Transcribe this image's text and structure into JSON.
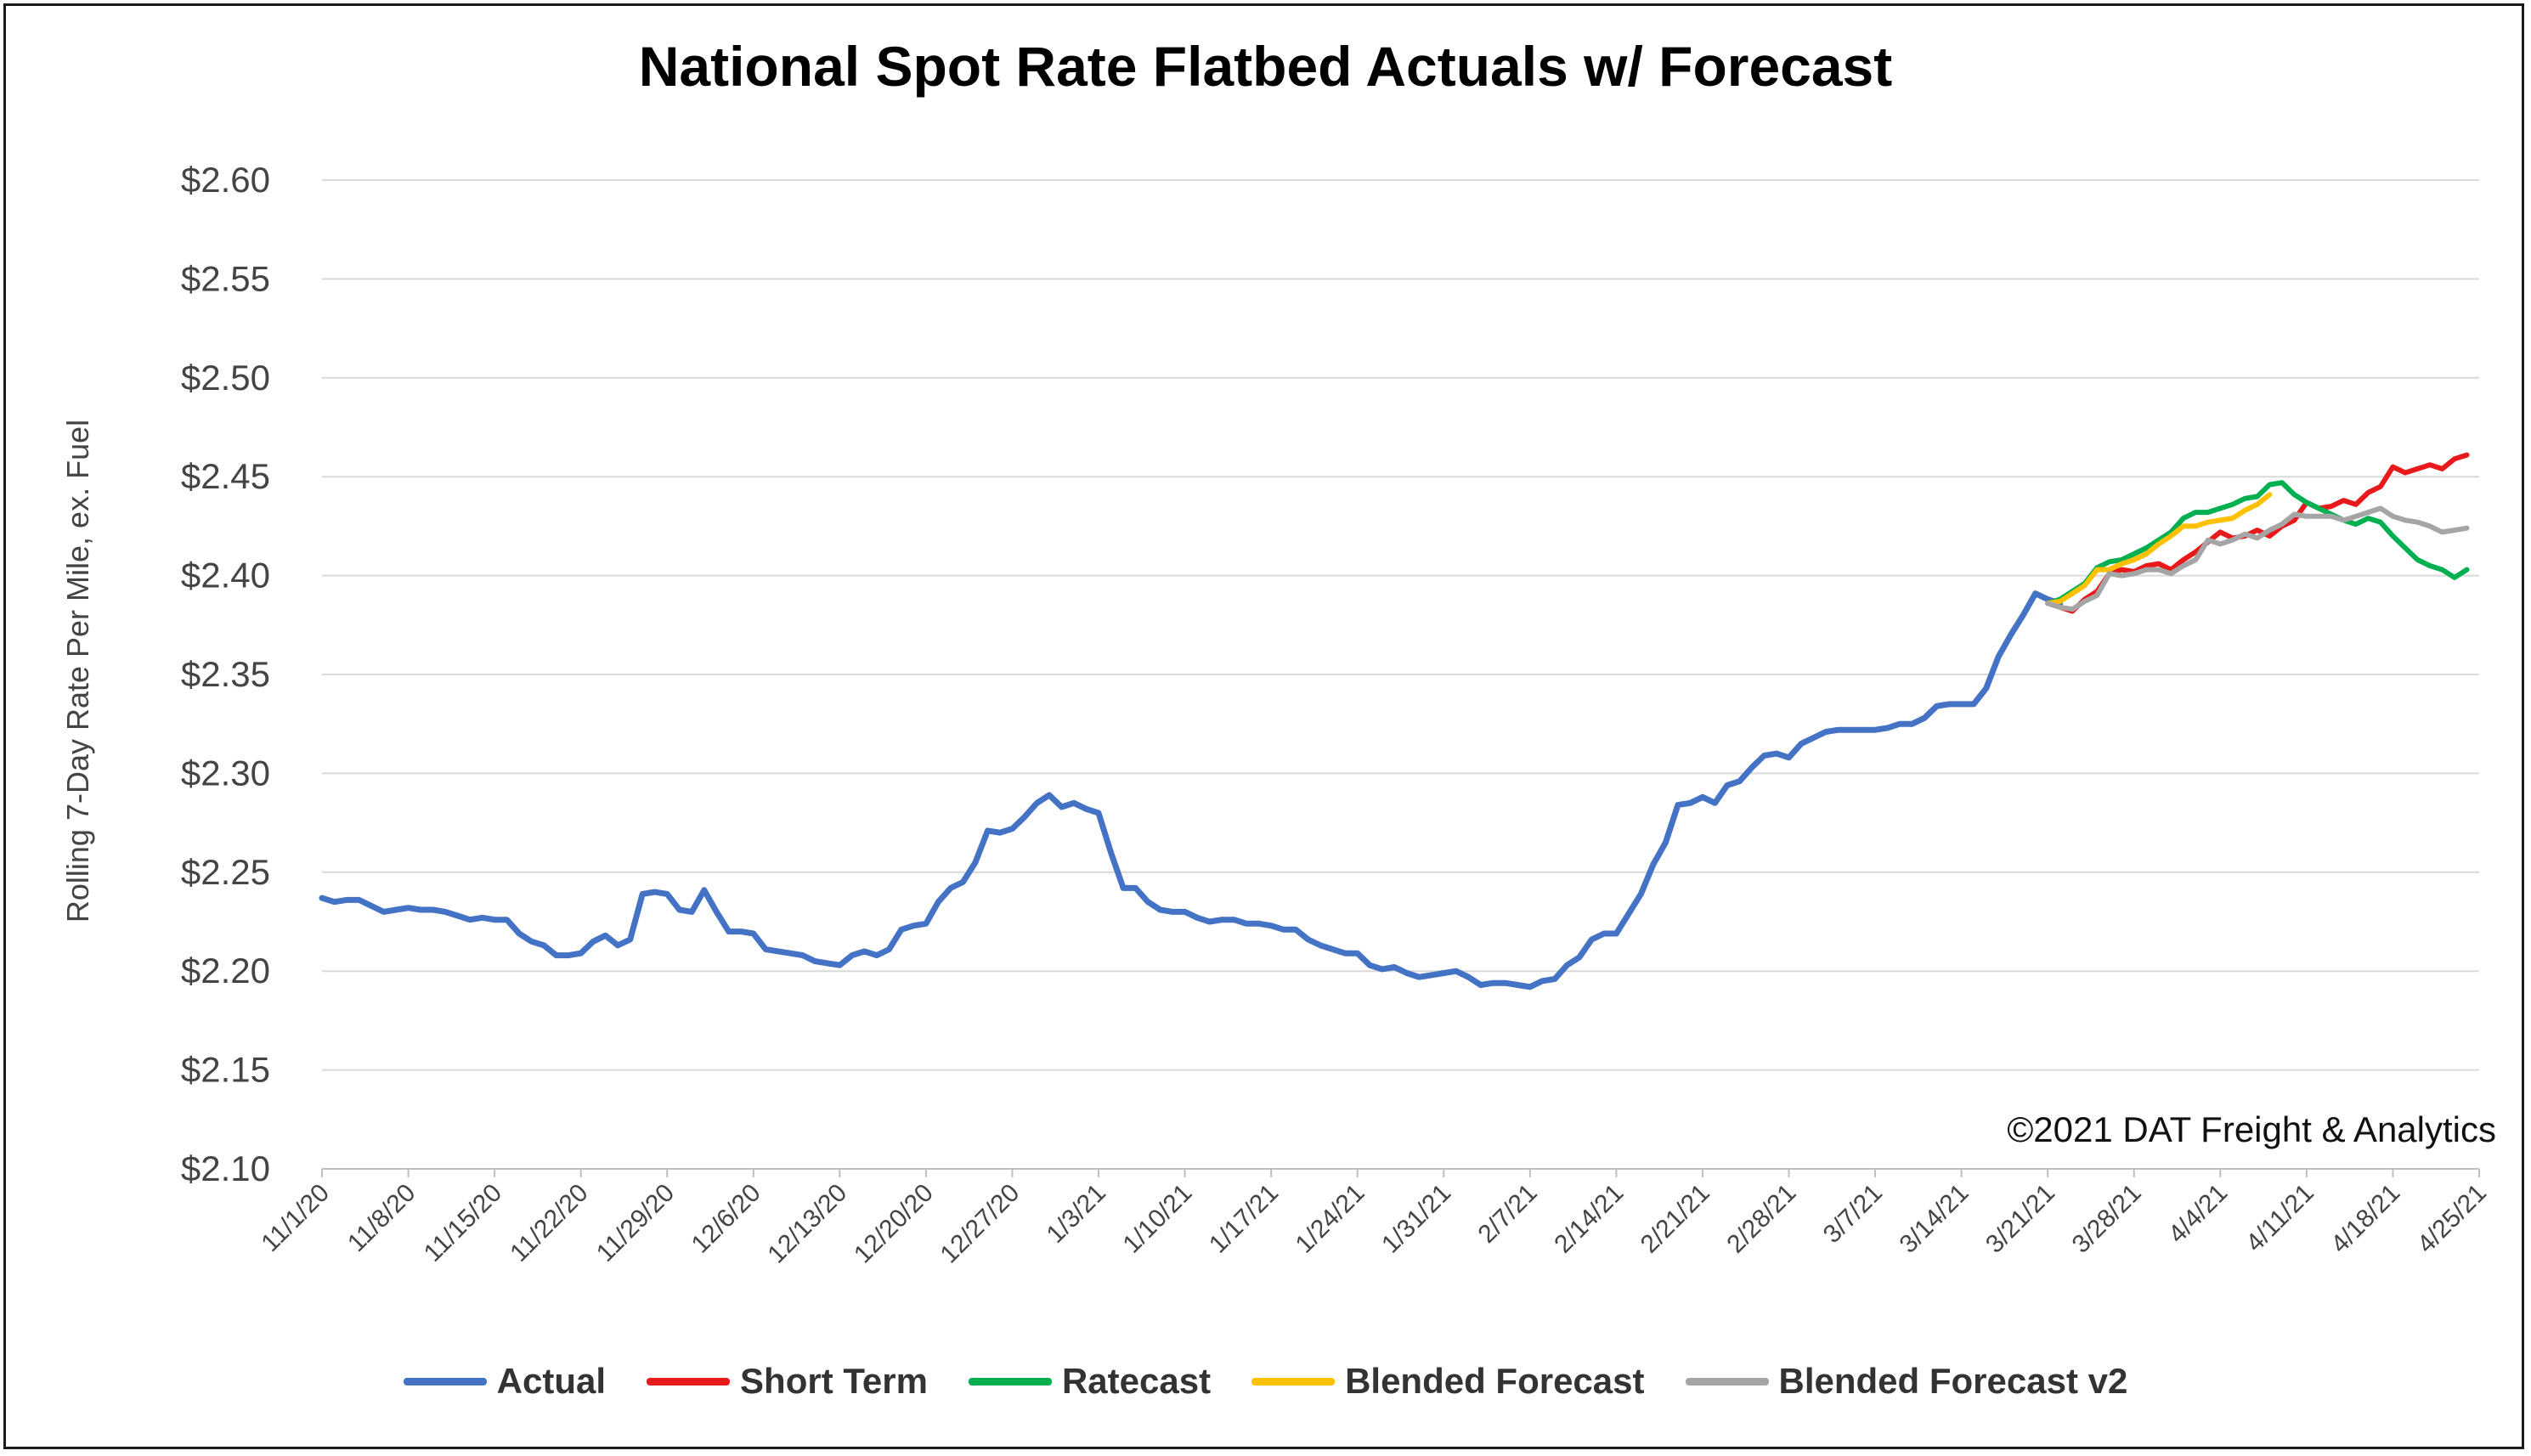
{
  "chart_data": {
    "type": "line",
    "title": "National Spot Rate Flatbed Actuals w/ Forecast",
    "ylabel": "Rolling 7-Day Rate Per Mile, ex. Fuel",
    "xlabel": "",
    "ylim": [
      2.1,
      2.6
    ],
    "yticks": [
      "$2.10",
      "$2.15",
      "$2.20",
      "$2.25",
      "$2.30",
      "$2.35",
      "$2.40",
      "$2.45",
      "$2.50",
      "$2.55",
      "$2.60"
    ],
    "xticks": [
      "11/1/20",
      "11/8/20",
      "11/15/20",
      "11/22/20",
      "11/29/20",
      "12/6/20",
      "12/13/20",
      "12/20/20",
      "12/27/20",
      "1/3/21",
      "1/10/21",
      "1/17/21",
      "1/24/21",
      "1/31/21",
      "2/7/21",
      "2/14/21",
      "2/21/21",
      "2/28/21",
      "3/7/21",
      "3/14/21",
      "3/21/21",
      "3/28/21",
      "4/4/21",
      "4/11/21",
      "4/18/21",
      "4/25/21"
    ],
    "x_start": "11/1/20",
    "grid": true,
    "legend_position": "bottom",
    "watermark": "©2021 DAT Freight & Analytics",
    "series": [
      {
        "name": "Actual",
        "color": "#4472C4",
        "start_day": 0,
        "values": [
          2.237,
          2.235,
          2.236,
          2.236,
          2.233,
          2.23,
          2.231,
          2.232,
          2.231,
          2.231,
          2.23,
          2.228,
          2.226,
          2.227,
          2.226,
          2.226,
          2.219,
          2.215,
          2.213,
          2.208,
          2.208,
          2.209,
          2.215,
          2.218,
          2.213,
          2.216,
          2.239,
          2.24,
          2.239,
          2.231,
          2.23,
          2.241,
          2.23,
          2.22,
          2.22,
          2.219,
          2.211,
          2.21,
          2.209,
          2.208,
          2.205,
          2.204,
          2.203,
          2.208,
          2.21,
          2.208,
          2.211,
          2.221,
          2.223,
          2.224,
          2.235,
          2.242,
          2.245,
          2.255,
          2.271,
          2.27,
          2.272,
          2.278,
          2.285,
          2.289,
          2.283,
          2.285,
          2.282,
          2.28,
          2.26,
          2.242,
          2.242,
          2.235,
          2.231,
          2.23,
          2.23,
          2.227,
          2.225,
          2.226,
          2.226,
          2.224,
          2.224,
          2.223,
          2.221,
          2.221,
          2.216,
          2.213,
          2.211,
          2.209,
          2.209,
          2.203,
          2.201,
          2.202,
          2.199,
          2.197,
          2.198,
          2.199,
          2.2,
          2.197,
          2.193,
          2.194,
          2.194,
          2.193,
          2.192,
          2.195,
          2.196,
          2.203,
          2.207,
          2.216,
          2.219,
          2.219,
          2.229,
          2.239,
          2.254,
          2.265,
          2.284,
          2.285,
          2.288,
          2.285,
          2.294,
          2.296,
          2.303,
          2.309,
          2.31,
          2.308,
          2.315,
          2.318,
          2.321,
          2.322,
          2.322,
          2.322,
          2.322,
          2.323,
          2.325,
          2.325,
          2.328,
          2.334,
          2.335,
          2.335,
          2.335,
          2.343,
          2.359,
          2.37,
          2.38,
          2.391,
          2.388,
          2.386
        ]
      },
      {
        "name": "Short Term",
        "color": "#E8191B",
        "start_day": 140,
        "values": [
          2.386,
          2.384,
          2.382,
          2.388,
          2.392,
          2.401,
          2.403,
          2.402,
          2.405,
          2.406,
          2.403,
          2.408,
          2.412,
          2.417,
          2.422,
          2.419,
          2.42,
          2.423,
          2.42,
          2.425,
          2.428,
          2.437,
          2.434,
          2.435,
          2.438,
          2.436,
          2.442,
          2.445,
          2.455,
          2.452,
          2.454,
          2.456,
          2.454,
          2.459,
          2.461
        ]
      },
      {
        "name": "Ratecast",
        "color": "#00B050",
        "start_day": 140,
        "values": [
          2.386,
          2.388,
          2.392,
          2.396,
          2.404,
          2.407,
          2.408,
          2.411,
          2.414,
          2.418,
          2.422,
          2.429,
          2.432,
          2.432,
          2.434,
          2.436,
          2.439,
          2.44,
          2.446,
          2.447,
          2.441,
          2.437,
          2.434,
          2.431,
          2.428,
          2.426,
          2.429,
          2.427,
          2.42,
          2.414,
          2.408,
          2.405,
          2.403,
          2.399,
          2.403
        ]
      },
      {
        "name": "Blended Forecast",
        "color": "#FFC000",
        "start_day": 140,
        "values": [
          2.386,
          2.387,
          2.391,
          2.395,
          2.403,
          2.403,
          2.406,
          2.408,
          2.411,
          2.416,
          2.42,
          2.425,
          2.425,
          2.427,
          2.428,
          2.429,
          2.433,
          2.436,
          2.441
        ]
      },
      {
        "name": "Blended Forecast v2",
        "color": "#A5A5A5",
        "start_day": 140,
        "values": [
          2.386,
          2.384,
          2.383,
          2.387,
          2.39,
          2.401,
          2.4,
          2.401,
          2.403,
          2.403,
          2.401,
          2.405,
          2.408,
          2.418,
          2.416,
          2.418,
          2.421,
          2.419,
          2.423,
          2.426,
          2.431,
          2.43,
          2.43,
          2.43,
          2.428,
          2.43,
          2.432,
          2.434,
          2.43,
          2.428,
          2.427,
          2.425,
          2.422,
          2.423,
          2.424
        ]
      }
    ]
  }
}
